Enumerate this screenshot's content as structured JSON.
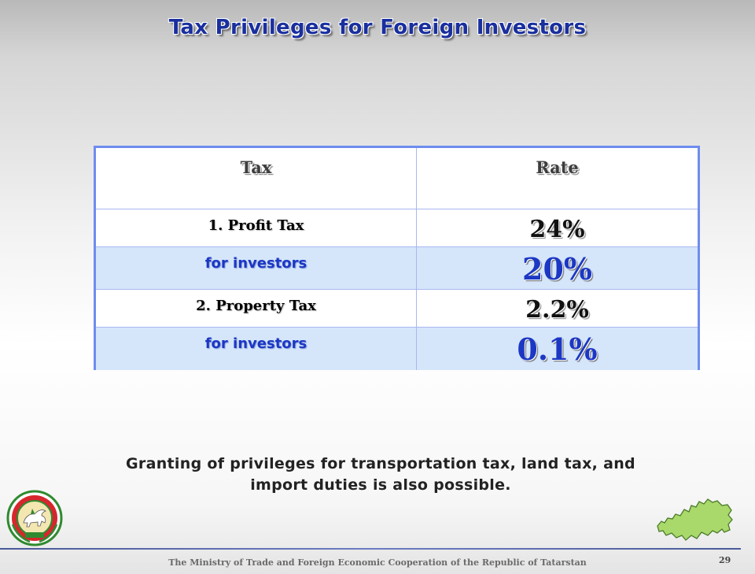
{
  "title": "Tax Privileges for Foreign Investors",
  "table": {
    "headers": {
      "tax": "Tax",
      "rate": "Rate"
    },
    "rows": [
      {
        "label": "1. Profit Tax",
        "rate": "24%"
      },
      {
        "label": "for investors",
        "rate": "20%"
      },
      {
        "label": "2. Property Tax",
        "rate": "2.2%"
      },
      {
        "label": "for investors",
        "rate": "0.1%"
      }
    ]
  },
  "note": {
    "line1": "Granting of privileges for transportation tax, land tax, and",
    "line2": "import duties is also possible."
  },
  "footer": {
    "text": "The Ministry of Trade and Foreign Economic Cooperation of the Republic of Tatarstan",
    "page_number": "29"
  },
  "colors": {
    "title": "#1a2f9e",
    "table_border": "#6e8cf0",
    "highlight_row": "#d5e6fb",
    "investor_text": "#1c37c4",
    "map_fill": "#a8d96a"
  },
  "icons": {
    "emblem": "tatarstan-coat-of-arms-icon",
    "map": "tatarstan-map-icon"
  }
}
